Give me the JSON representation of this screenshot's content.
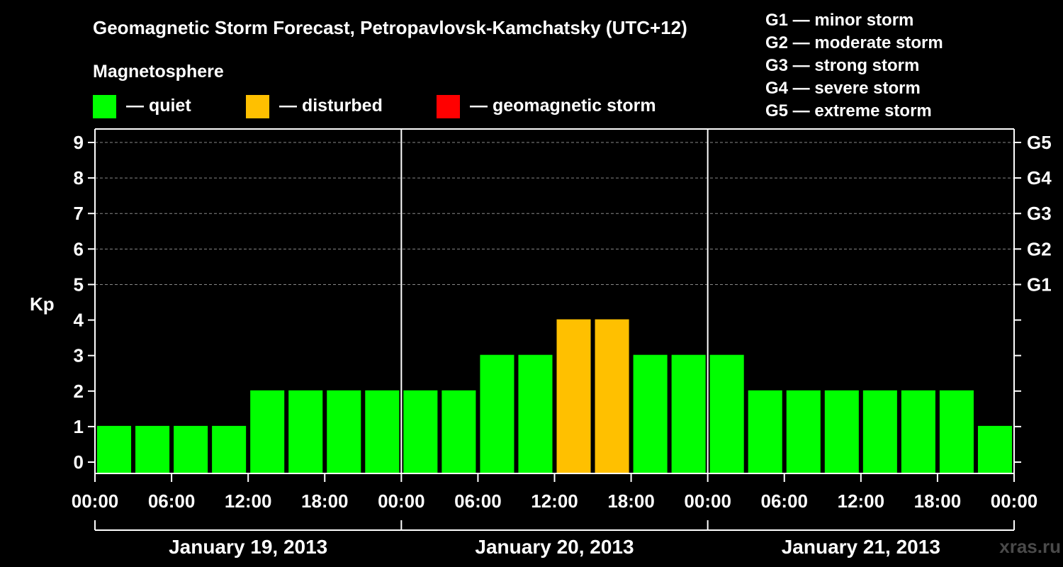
{
  "header": {
    "title": "Geomagnetic Storm Forecast, Petropavlovsk-Kamchatsky (UTC+12)",
    "legend_heading": "Magnetosphere"
  },
  "legend": [
    {
      "label": "— quiet",
      "color": "#00ff00"
    },
    {
      "label": "— disturbed",
      "color": "#ffc000"
    },
    {
      "label": "— geomagnetic storm",
      "color": "#ff0000"
    }
  ],
  "storm_levels": [
    "G1 — minor storm",
    "G2 — moderate storm",
    "G3 — strong storm",
    "G4 — severe storm",
    "G5 — extreme storm"
  ],
  "watermark": "xras.ru",
  "chart_data": {
    "type": "bar",
    "ylabel": "Kp",
    "ylim": [
      0,
      9
    ],
    "yticks": [
      "0",
      "1",
      "2",
      "3",
      "4",
      "5",
      "6",
      "7",
      "8",
      "9"
    ],
    "right_axis_labels": [
      {
        "kp": 5,
        "label": "G1"
      },
      {
        "kp": 6,
        "label": "G2"
      },
      {
        "kp": 7,
        "label": "G3"
      },
      {
        "kp": 8,
        "label": "G4"
      },
      {
        "kp": 9,
        "label": "G5"
      }
    ],
    "x_tick_labels": [
      "00:00",
      "06:00",
      "12:00",
      "18:00",
      "00:00",
      "06:00",
      "12:00",
      "18:00",
      "00:00",
      "06:00",
      "12:00",
      "18:00",
      "00:00"
    ],
    "days": [
      "January 19, 2013",
      "January 20, 2013",
      "January 21, 2013"
    ],
    "bars_per_day": 8,
    "values": [
      1,
      1,
      1,
      1,
      2,
      2,
      2,
      2,
      2,
      2,
      3,
      3,
      4,
      4,
      3,
      3,
      3,
      2,
      2,
      2,
      2,
      2,
      2,
      1
    ],
    "colors": {
      "quiet": "#00ff00",
      "disturbed": "#ffc000",
      "storm": "#ff0000"
    },
    "grid": true
  }
}
